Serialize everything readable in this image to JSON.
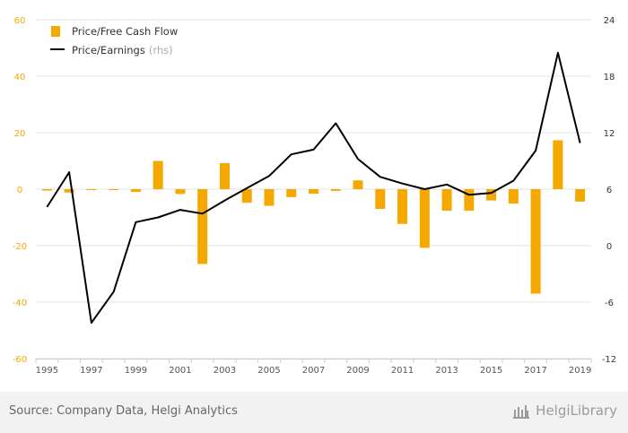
{
  "chart_data": {
    "type": "bar+line",
    "categories": [
      "1995",
      "1996",
      "1997",
      "1998",
      "1999",
      "2000",
      "2001",
      "2002",
      "2003",
      "2004",
      "2005",
      "2006",
      "2007",
      "2008",
      "2009",
      "2010",
      "2011",
      "2012",
      "2013",
      "2014",
      "2015",
      "2016",
      "2017",
      "2018",
      "2019"
    ],
    "series": [
      {
        "name": "Price/Free Cash Flow",
        "axis": "left",
        "render": "bar",
        "color": "#f5a800",
        "values": [
          -0.5,
          -1.2,
          -0.3,
          -0.3,
          -1.0,
          10.0,
          -1.7,
          -26.5,
          9.2,
          -4.8,
          -5.9,
          -2.8,
          -1.6,
          -0.6,
          3.1,
          -7.0,
          -12.3,
          -20.8,
          -7.6,
          -7.6,
          -4.0,
          -5.1,
          -37.0,
          17.3,
          -4.4
        ]
      },
      {
        "name": "Price/Earnings",
        "name_suffix": "(rhs)",
        "axis": "right",
        "render": "line",
        "color": "#000000",
        "values": [
          4.1,
          7.8,
          -8.2,
          -4.9,
          2.5,
          3.0,
          3.8,
          3.4,
          4.8,
          6.1,
          7.4,
          9.7,
          10.2,
          13.0,
          9.2,
          7.3,
          6.6,
          6.0,
          6.5,
          5.4,
          5.6,
          6.9,
          10.1,
          20.5,
          10.9
        ]
      }
    ],
    "left_axis": {
      "range": [
        -60,
        60
      ],
      "ticks": [
        "60",
        "40",
        "20",
        "0",
        "-20",
        "-40",
        "-60"
      ]
    },
    "right_axis": {
      "range": [
        -12,
        24
      ],
      "ticks": [
        "24",
        "18",
        "12",
        "6",
        "0",
        "-6",
        "-12"
      ]
    },
    "x_tick_labels": [
      "1995",
      "1997",
      "1999",
      "2001",
      "2003",
      "2005",
      "2007",
      "2009",
      "2011",
      "2013",
      "2015",
      "2017",
      "2019"
    ],
    "grid": true,
    "legend_position": "top-left",
    "left_tick_color": "#f5a800",
    "right_tick_color": "#333333"
  },
  "footer": {
    "source": "Source: Company Data, Helgi Analytics",
    "brand": "HelgiLibrary"
  }
}
